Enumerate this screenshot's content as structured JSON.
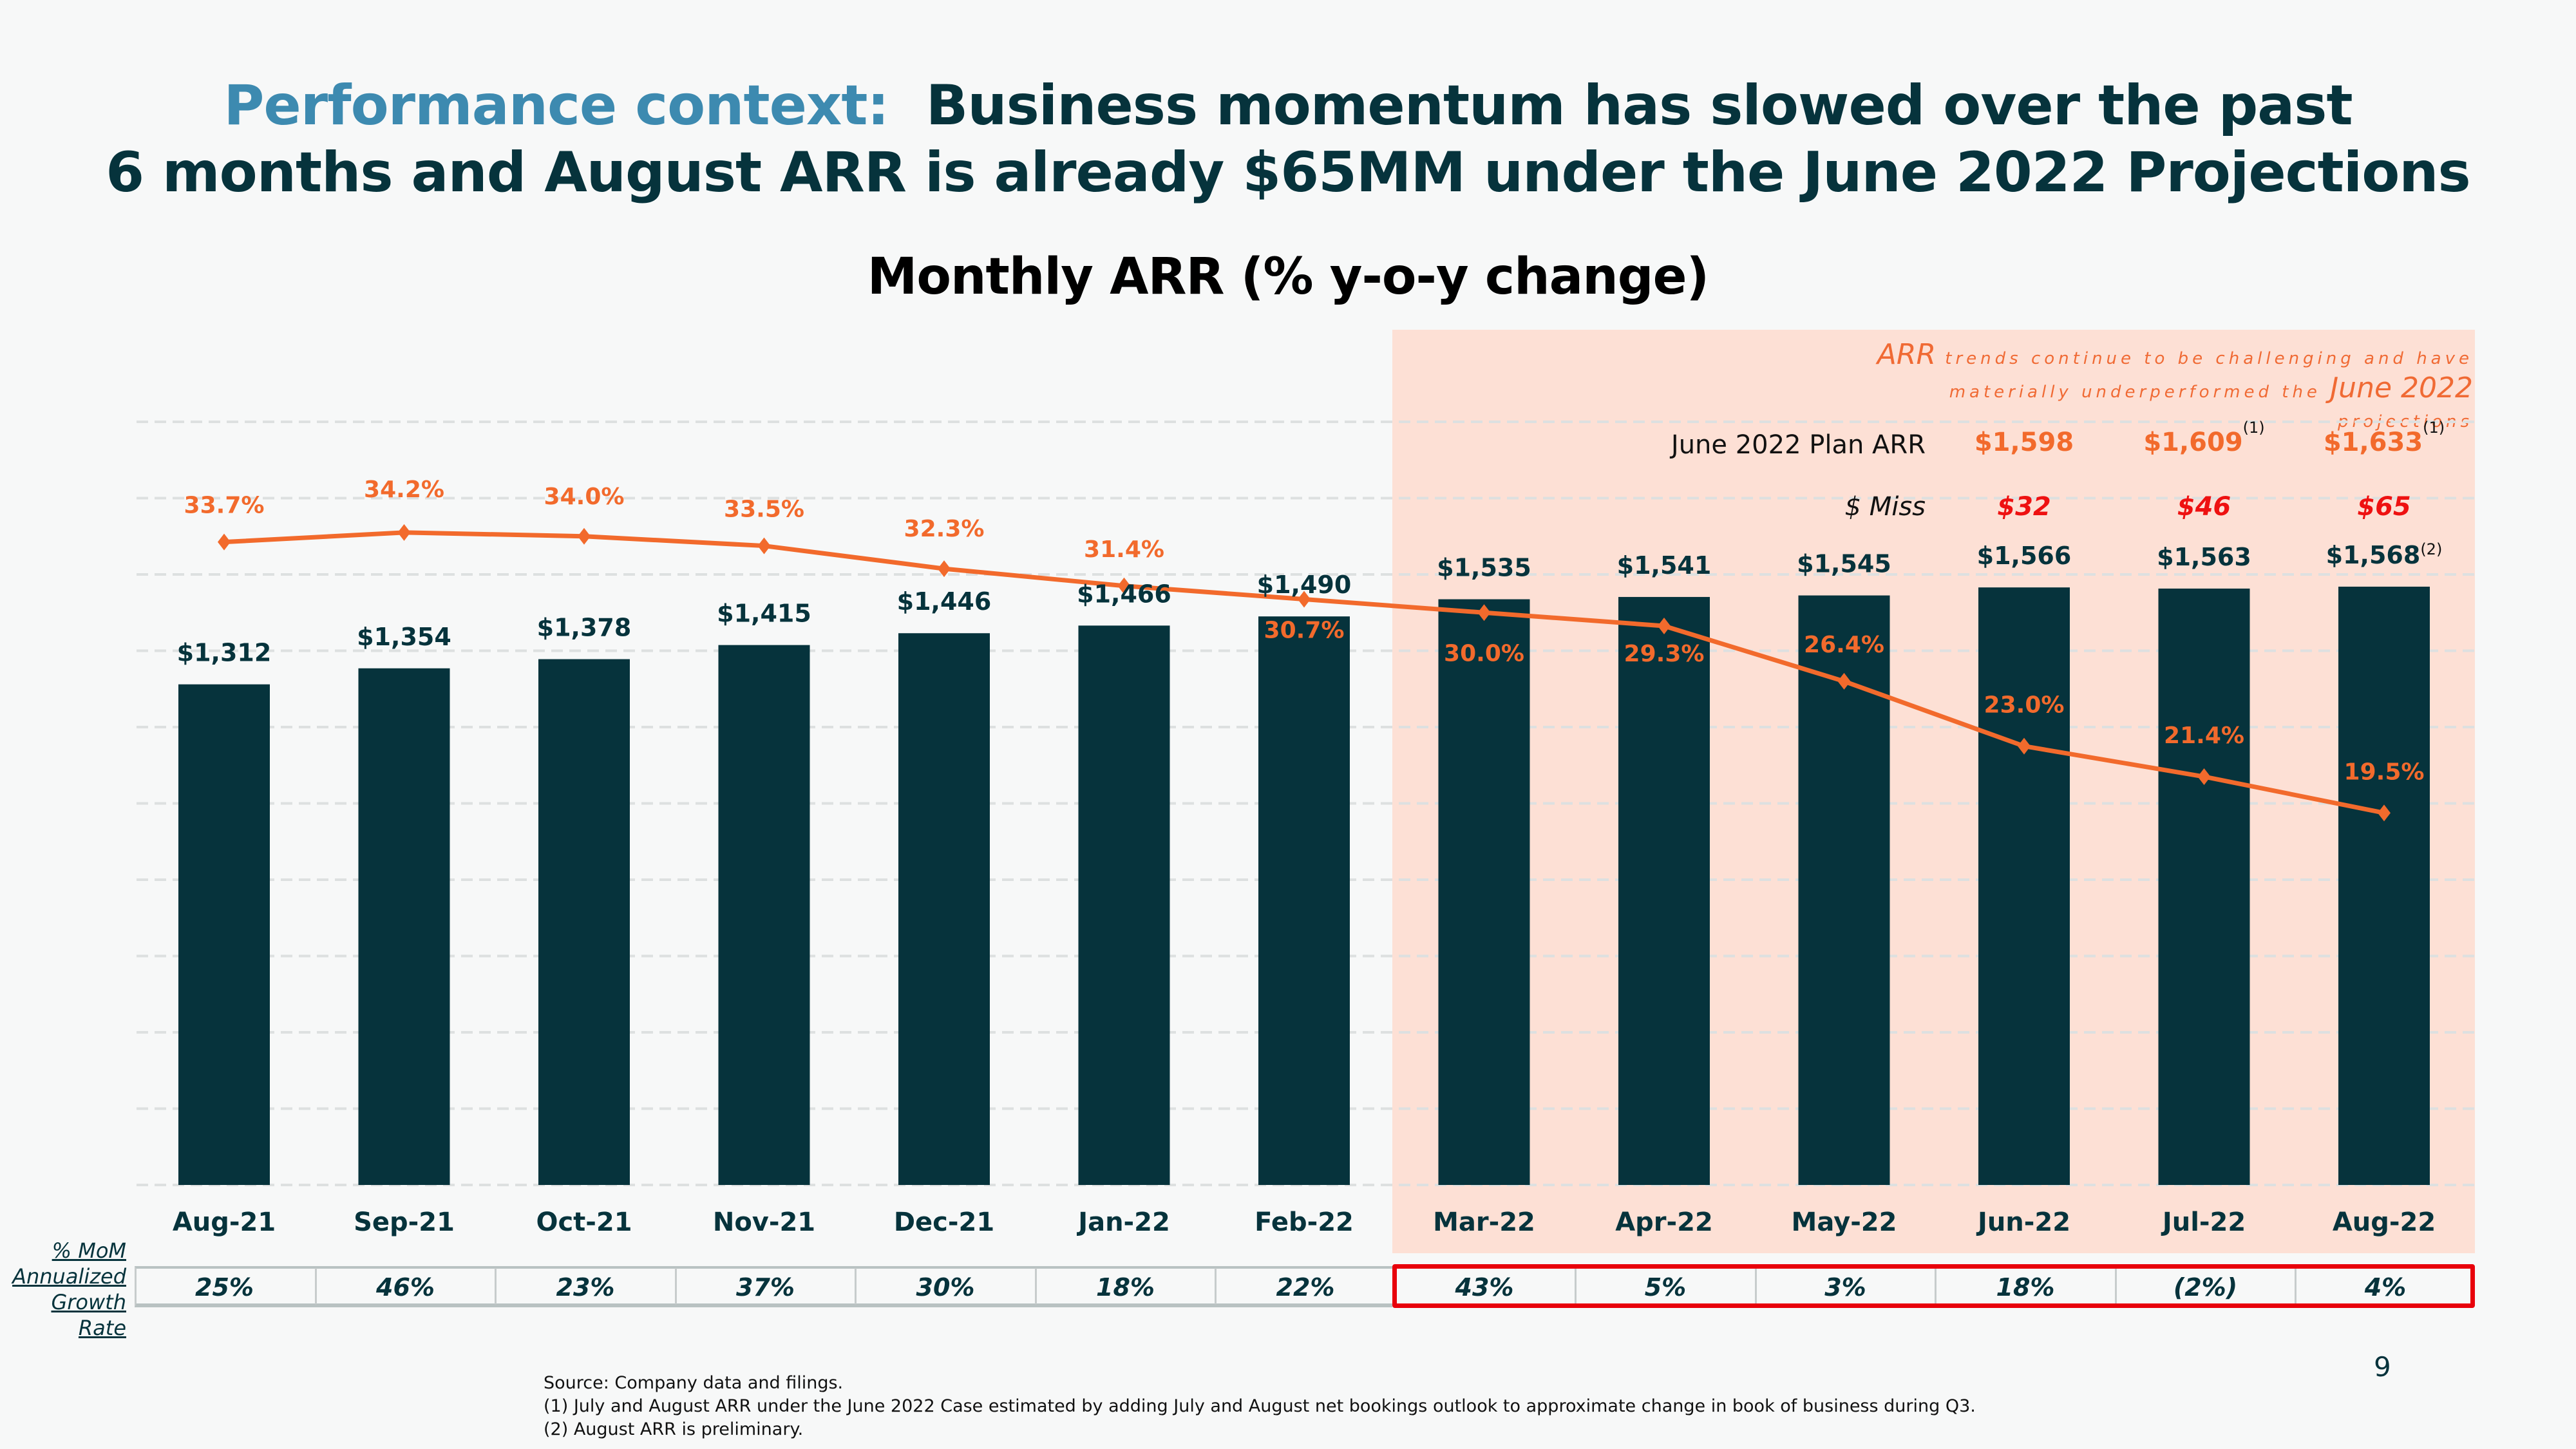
{
  "header": {
    "title_accent": "Performance context:",
    "title_line1_rest": "Business momentum has slowed over the past",
    "title_line2": "6 months and August ARR is already $65MM under the June 2022 Projections"
  },
  "callout": {
    "text_parts": [
      "ARR",
      " trends continue to be challenging and have",
      "materially underperformed the ",
      "June 2022",
      " projections"
    ]
  },
  "plan": {
    "plan_label": "June 2022 Plan ARR",
    "miss_label": "$ Miss",
    "columns": [
      {
        "month": "Jun-22",
        "plan": "$1,598",
        "plan_note": "",
        "miss": "$32"
      },
      {
        "month": "Jul-22",
        "plan": "$1,609",
        "plan_note": "(1)",
        "miss": "$46"
      },
      {
        "month": "Aug-22",
        "plan": "$1,633",
        "plan_note": "(1)",
        "miss": "$65"
      }
    ]
  },
  "chart_data": {
    "type": "bar",
    "title": "Monthly ARR (% y-o-y change)",
    "xlabel": "",
    "ylabel": "",
    "categories": [
      "Aug-21",
      "Sep-21",
      "Oct-21",
      "Nov-21",
      "Dec-21",
      "Jan-22",
      "Feb-22",
      "Mar-22",
      "Apr-22",
      "May-22",
      "Jun-22",
      "Jul-22",
      "Aug-22"
    ],
    "series": [
      {
        "name": "Monthly ARR ($MM)",
        "type": "bar",
        "color": "#06333c",
        "values": [
          1312,
          1354,
          1378,
          1415,
          1446,
          1466,
          1490,
          1535,
          1541,
          1545,
          1566,
          1563,
          1568
        ],
        "labels": [
          "$1,312",
          "$1,354",
          "$1,378",
          "$1,415",
          "$1,446",
          "$1,466",
          "$1,490",
          "$1,535",
          "$1,541",
          "$1,545",
          "$1,566",
          "$1,563",
          "$1,568"
        ],
        "label_notes": [
          "",
          "",
          "",
          "",
          "",
          "",
          "",
          "",
          "",
          "",
          "",
          "",
          "(2)"
        ]
      },
      {
        "name": "% y-o-y change",
        "type": "line",
        "color": "#f26a2c",
        "axis": "secondary",
        "values": [
          33.7,
          34.2,
          34.0,
          33.5,
          32.3,
          31.4,
          30.7,
          30.0,
          29.3,
          26.4,
          23.0,
          21.4,
          19.5
        ],
        "labels": [
          "33.7%",
          "34.2%",
          "34.0%",
          "33.5%",
          "32.3%",
          "31.4%",
          "30.7%",
          "30.0%",
          "29.3%",
          "26.4%",
          "23.0%",
          "21.4%",
          "19.5%"
        ]
      }
    ],
    "ylim": [
      0,
      2000
    ],
    "y2lim": [
      0,
      40
    ],
    "grid": true,
    "highlight_range": [
      "Mar-22",
      "Aug-22"
    ],
    "highlight_color": "#fde0d5",
    "mom_annualized_growth": {
      "label": "% MoM Annualized Growth Rate",
      "values": [
        "25%",
        "46%",
        "23%",
        "37%",
        "30%",
        "18%",
        "22%",
        "43%",
        "5%",
        "3%",
        "18%",
        "(2%)",
        "4%"
      ]
    }
  },
  "footnotes": [
    "Source:  Company data and filings.",
    "(1)  July and August ARR under the June 2022 Case estimated by adding July and August net bookings outlook to approximate change in book of business during Q3.",
    "(2) August ARR is preliminary."
  ],
  "page_number": "9",
  "colors": {
    "accent": "#3d8ab0",
    "primary": "#06333c",
    "line": "#f26a2c",
    "miss": "#ee1111",
    "highlight": "#fde0d5",
    "frame_red": "#e8000b"
  }
}
